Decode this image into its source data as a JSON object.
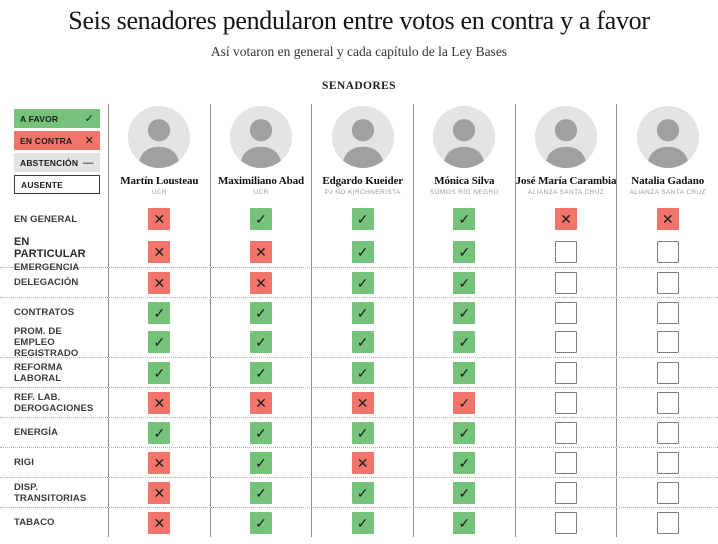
{
  "title": "Seis senadores pendularon entre votos en contra y a favor",
  "subtitle": "Así votaron en general y cada capítulo de la Ley Bases",
  "table_header": "SENADORES",
  "colors": {
    "favor": "#75c37b",
    "contra": "#f2746b",
    "abstencion": "#e3e3e3",
    "grid_line": "#8e8e8e",
    "row_separator": "#b0b0b0"
  },
  "glyphs": {
    "favor": "✓",
    "contra": "✕",
    "abstencion": "—",
    "ausente": "",
    "contra_favor": "✓"
  },
  "legend": [
    {
      "label": "A FAVOR",
      "type": "favor"
    },
    {
      "label": "EN CONTRA",
      "type": "contra"
    },
    {
      "label": "ABSTENCIÓN",
      "type": "abstencion"
    },
    {
      "label": "AUSENTE",
      "type": "ausente"
    }
  ],
  "senators": [
    {
      "name": "Martín Lousteau",
      "party": "UCR"
    },
    {
      "name": "Maximiliano Abad",
      "party": "UCR"
    },
    {
      "name": "Edgardo Kueider",
      "party": "PJ NO KIRCHNERISTA"
    },
    {
      "name": "Mónica Silva",
      "party": "SOMOS RÍO NEGRO"
    },
    {
      "name": "José María Carambia",
      "party": "ALIANZA SANTA CRUZ"
    },
    {
      "name": "Natalia Gadano",
      "party": "ALIANZA SANTA CRUZ"
    }
  ],
  "rows": [
    {
      "label": "EN GENERAL",
      "sep": false,
      "votes": [
        "contra",
        "favor",
        "favor",
        "favor",
        "contra",
        "contra"
      ]
    },
    {
      "section": "EN PARTICULAR",
      "label": "EMERGENCIA",
      "sep": false,
      "votes": [
        "contra",
        "contra",
        "favor",
        "favor",
        "ausente",
        "ausente"
      ]
    },
    {
      "label": "DELEGACIÓN",
      "sep": true,
      "votes": [
        "contra",
        "contra",
        "favor",
        "favor",
        "ausente",
        "ausente"
      ]
    },
    {
      "label": "CONTRATOS",
      "sep": true,
      "votes": [
        "favor",
        "favor",
        "favor",
        "favor",
        "ausente",
        "ausente"
      ]
    },
    {
      "label": "PROM. DE EMPLEO REGISTRADO",
      "sep": false,
      "votes": [
        "favor",
        "favor",
        "favor",
        "favor",
        "ausente",
        "ausente"
      ]
    },
    {
      "label": "REFORMA LABORAL",
      "sep": true,
      "votes": [
        "favor",
        "favor",
        "favor",
        "favor",
        "ausente",
        "ausente"
      ]
    },
    {
      "label": "REF. LAB. DEROGACIONES",
      "sep": true,
      "votes": [
        "contra",
        "contra",
        "contra",
        "contra_favor",
        "ausente",
        "ausente"
      ]
    },
    {
      "label": "ENERGÍA",
      "sep": true,
      "votes": [
        "favor",
        "favor",
        "favor",
        "favor",
        "ausente",
        "ausente"
      ]
    },
    {
      "label": "RIGI",
      "sep": true,
      "votes": [
        "contra",
        "favor",
        "contra",
        "favor",
        "ausente",
        "ausente"
      ]
    },
    {
      "label": "DISP. TRANSITORIAS",
      "sep": true,
      "votes": [
        "contra",
        "favor",
        "favor",
        "favor",
        "ausente",
        "ausente"
      ]
    },
    {
      "label": "TABACO",
      "sep": true,
      "votes": [
        "contra",
        "favor",
        "favor",
        "favor",
        "ausente",
        "ausente"
      ]
    }
  ],
  "chart_data": {
    "type": "table",
    "title": "Seis senadores pendularon entre votos en contra y a favor",
    "subtitle": "Así votaron en general y cada capítulo de la Ley Bases",
    "legend": [
      "A FAVOR",
      "EN CONTRA",
      "ABSTENCIÓN",
      "AUSENTE"
    ],
    "columns": [
      "Martín Lousteau",
      "Maximiliano Abad",
      "Edgardo Kueider",
      "Mónica Silva",
      "José María Carambia",
      "Natalia Gadano"
    ],
    "column_parties": [
      "UCR",
      "UCR",
      "PJ NO KIRCHNERISTA",
      "SOMOS RÍO NEGRO",
      "ALIANZA SANTA CRUZ",
      "ALIANZA SANTA CRUZ"
    ],
    "row_labels": [
      "EN GENERAL",
      "EMERGENCIA",
      "DELEGACIÓN",
      "CONTRATOS",
      "PROM. DE EMPLEO REGISTRADO",
      "REFORMA LABORAL",
      "REF. LAB. DEROGACIONES",
      "ENERGÍA",
      "RIGI",
      "DISP. TRANSITORIAS",
      "TABACO"
    ],
    "values": [
      [
        "EN CONTRA",
        "A FAVOR",
        "A FAVOR",
        "A FAVOR",
        "EN CONTRA",
        "EN CONTRA"
      ],
      [
        "EN CONTRA",
        "EN CONTRA",
        "A FAVOR",
        "A FAVOR",
        "AUSENTE",
        "AUSENTE"
      ],
      [
        "EN CONTRA",
        "EN CONTRA",
        "A FAVOR",
        "A FAVOR",
        "AUSENTE",
        "AUSENTE"
      ],
      [
        "A FAVOR",
        "A FAVOR",
        "A FAVOR",
        "A FAVOR",
        "AUSENTE",
        "AUSENTE"
      ],
      [
        "A FAVOR",
        "A FAVOR",
        "A FAVOR",
        "A FAVOR",
        "AUSENTE",
        "AUSENTE"
      ],
      [
        "A FAVOR",
        "A FAVOR",
        "A FAVOR",
        "A FAVOR",
        "AUSENTE",
        "AUSENTE"
      ],
      [
        "EN CONTRA",
        "EN CONTRA",
        "EN CONTRA",
        "EN CONTRA (tilde sobre fondo rojo)",
        "AUSENTE",
        "AUSENTE"
      ],
      [
        "A FAVOR",
        "A FAVOR",
        "A FAVOR",
        "A FAVOR",
        "AUSENTE",
        "AUSENTE"
      ],
      [
        "EN CONTRA",
        "A FAVOR",
        "EN CONTRA",
        "A FAVOR",
        "AUSENTE",
        "AUSENTE"
      ],
      [
        "EN CONTRA",
        "A FAVOR",
        "A FAVOR",
        "A FAVOR",
        "AUSENTE",
        "AUSENTE"
      ],
      [
        "EN CONTRA",
        "A FAVOR",
        "A FAVOR",
        "A FAVOR",
        "AUSENTE",
        "AUSENTE"
      ]
    ]
  }
}
